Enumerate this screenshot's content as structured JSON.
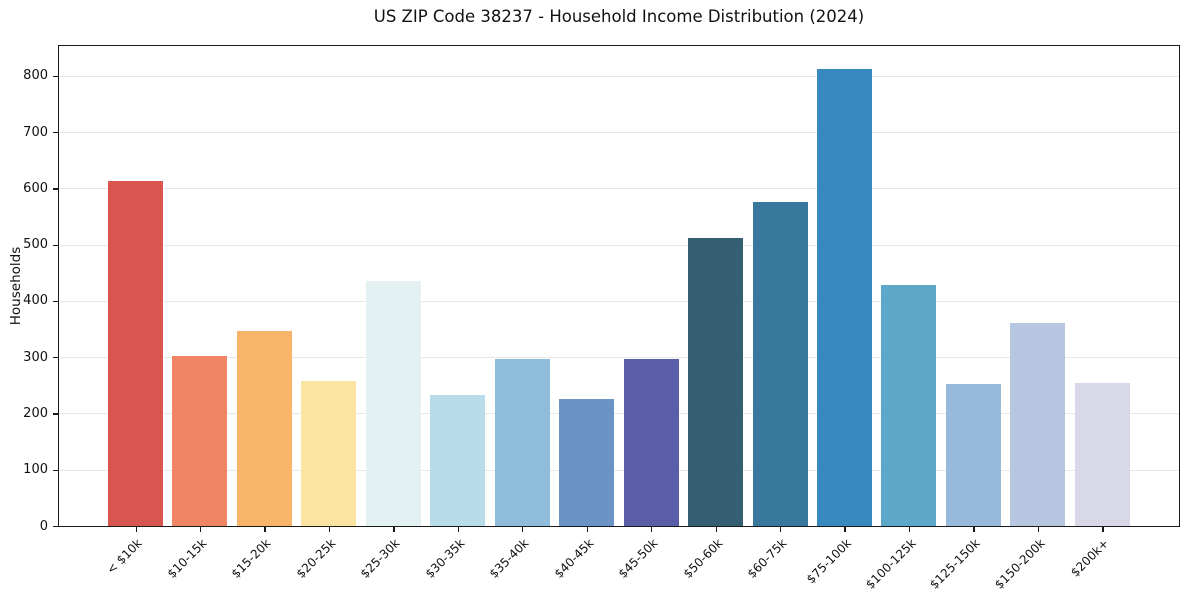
{
  "chart_data": {
    "type": "bar",
    "title": "US ZIP Code 38237 - Household Income Distribution (2024)",
    "xlabel": "",
    "ylabel": "Households",
    "categories": [
      "< $10k",
      "$10-15k",
      "$15-20k",
      "$20-25k",
      "$25-30k",
      "$30-35k",
      "$35-40k",
      "$40-45k",
      "$45-50k",
      "$50-60k",
      "$60-75k",
      "$75-100k",
      "$100-125k",
      "$125-150k",
      "$150-200k",
      "$200k+"
    ],
    "values": [
      613,
      303,
      347,
      257,
      435,
      232,
      296,
      225,
      296,
      512,
      575,
      812,
      428,
      253,
      360,
      255
    ],
    "bar_colors": [
      "#d8564f",
      "#f08566",
      "#f8b569",
      "#fbe3a0",
      "#e4f1f2",
      "#b9dcea",
      "#8ebcdb",
      "#6b93c5",
      "#5a5ea9",
      "#355f72",
      "#37789c",
      "#3789c0",
      "#5da7c8",
      "#97badb",
      "#b7c6e1",
      "#d8d8e8"
    ],
    "ylim": [
      0,
      853
    ],
    "yticks": [
      0,
      100,
      200,
      300,
      400,
      500,
      600,
      700,
      800
    ],
    "x_tick_rotation_deg": 45,
    "grid": "horizontal",
    "grid_color": "#e8e8e8",
    "legend": "none",
    "plot_background": "#ffffff"
  }
}
